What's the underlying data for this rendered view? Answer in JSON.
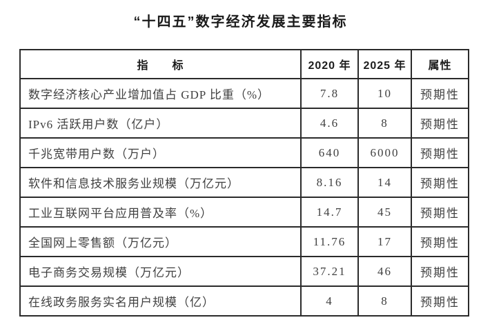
{
  "title": "“十四五”数字经济发展主要指标",
  "table": {
    "headers": [
      "指　　标",
      "2020 年",
      "2025 年",
      "属性"
    ],
    "rows": [
      {
        "indicator": "数字经济核心产业增加值占 GDP 比重（%）",
        "y2020": "7.8",
        "y2025": "10",
        "attribute": "预期性"
      },
      {
        "indicator": "IPv6 活跃用户数（亿户）",
        "y2020": "4.6",
        "y2025": "8",
        "attribute": "预期性"
      },
      {
        "indicator": "千兆宽带用户数（万户）",
        "y2020": "640",
        "y2025": "6000",
        "attribute": "预期性"
      },
      {
        "indicator": "软件和信息技术服务业规模（万亿元）",
        "y2020": "8.16",
        "y2025": "14",
        "attribute": "预期性"
      },
      {
        "indicator": "工业互联网平台应用普及率（%）",
        "y2020": "14.7",
        "y2025": "45",
        "attribute": "预期性"
      },
      {
        "indicator": "全国网上零售额（万亿元）",
        "y2020": "11.76",
        "y2025": "17",
        "attribute": "预期性"
      },
      {
        "indicator": "电子商务交易规模（万亿元）",
        "y2020": "37.21",
        "y2025": "46",
        "attribute": "预期性"
      },
      {
        "indicator": "在线政务服务实名用户规模（亿）",
        "y2020": "4",
        "y2025": "8",
        "attribute": "预期性"
      }
    ]
  },
  "colors": {
    "background": "#ffffff",
    "border": "#2a2a2a",
    "body_text": "#404040",
    "heading_text": "#1a1a1a"
  }
}
